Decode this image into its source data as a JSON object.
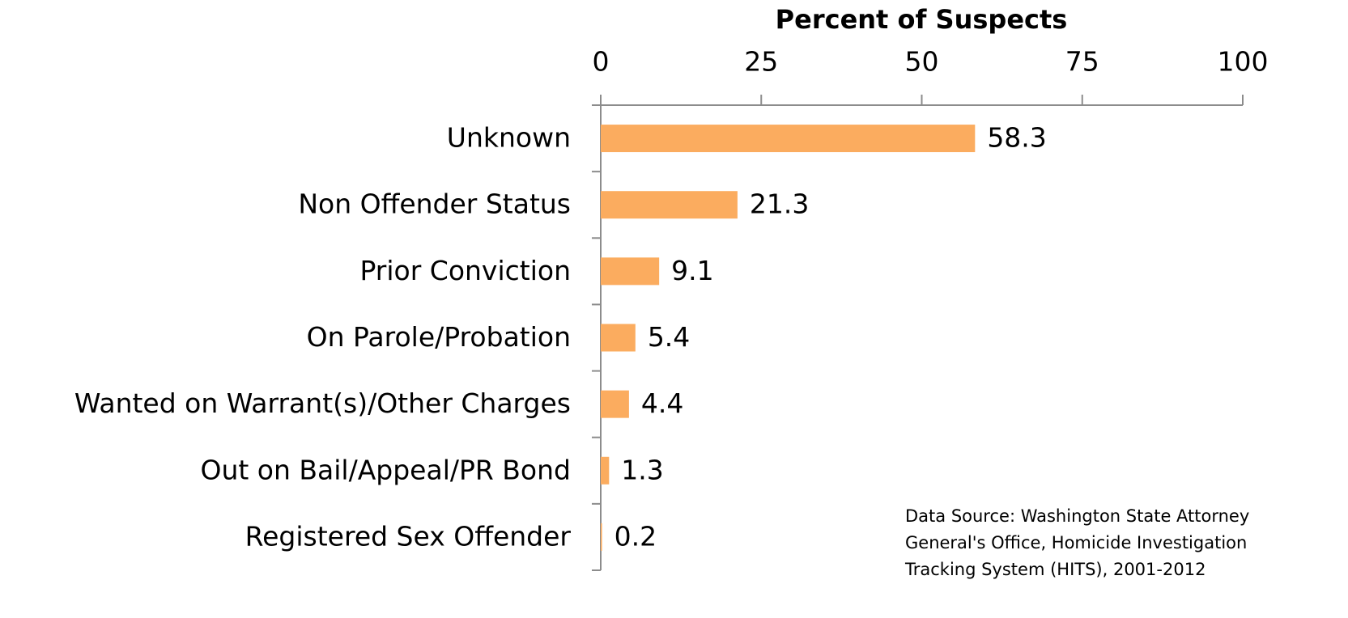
{
  "chart_data": {
    "type": "bar",
    "orientation": "horizontal",
    "x_axis_label": "Percent of Suspects",
    "categories": [
      "Unknown",
      "Non Offender Status",
      "Prior Conviction",
      "On Parole/Probation",
      "Wanted on Warrant(s)/Other Charges",
      "Out on Bail/Appeal/PR Bond",
      "Registered Sex Offender"
    ],
    "values": [
      58.3,
      21.3,
      9.1,
      5.4,
      4.4,
      1.3,
      0.2
    ],
    "color": "#fbac5f",
    "xlim": [
      0,
      100
    ],
    "xticks": [
      0,
      25,
      50,
      75,
      100
    ],
    "annotation": [
      "Data Source: Washington State Attorney",
      "General's Office, Homicide Investigation",
      "Tracking System (HITS), 2001-2012"
    ]
  }
}
